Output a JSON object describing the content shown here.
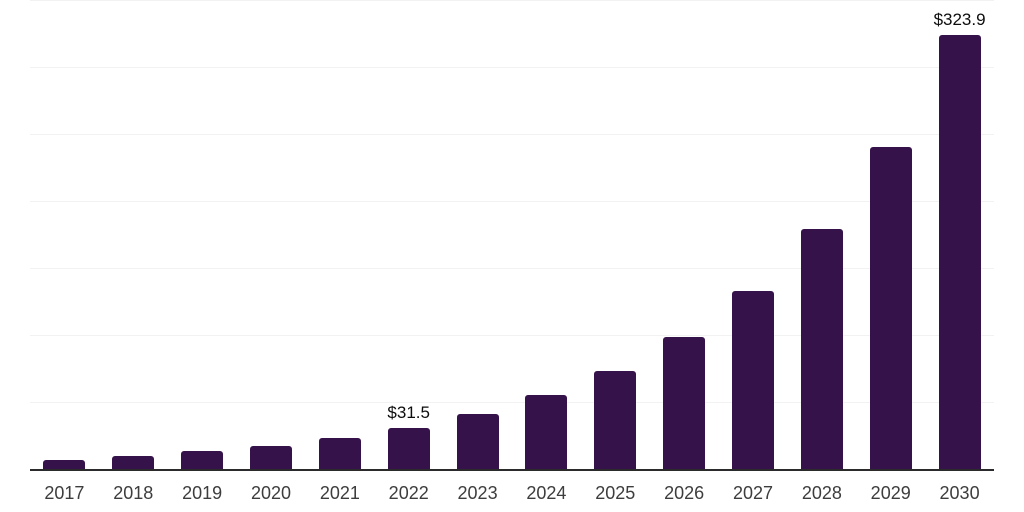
{
  "chart_data": {
    "type": "bar",
    "title": "",
    "xlabel": "",
    "ylabel": "",
    "categories": [
      "2017",
      "2018",
      "2019",
      "2020",
      "2021",
      "2022",
      "2023",
      "2024",
      "2025",
      "2026",
      "2027",
      "2028",
      "2029",
      "2030"
    ],
    "values": [
      7.5,
      10.3,
      13.9,
      18.2,
      23.8,
      31.5,
      41.8,
      55.8,
      74.1,
      99.3,
      133.0,
      179.5,
      240.2,
      323.9
    ],
    "annotations": [
      {
        "category": "2022",
        "text": "$31.5"
      },
      {
        "category": "2030",
        "text": "$323.9"
      }
    ],
    "value_prefix": "$",
    "ylim": [
      0,
      350
    ],
    "gridline_step": 50,
    "grid": true,
    "legend": false,
    "bar_color": "#351249"
  },
  "styles": {
    "background_color": "#ffffff",
    "bar_color": "#351249",
    "gridline_color": "#f2f2f2",
    "axis_line_color": "#2b2b2b",
    "year_label_color": "#3d3d3d",
    "value_label_color": "#0d0d0d"
  }
}
